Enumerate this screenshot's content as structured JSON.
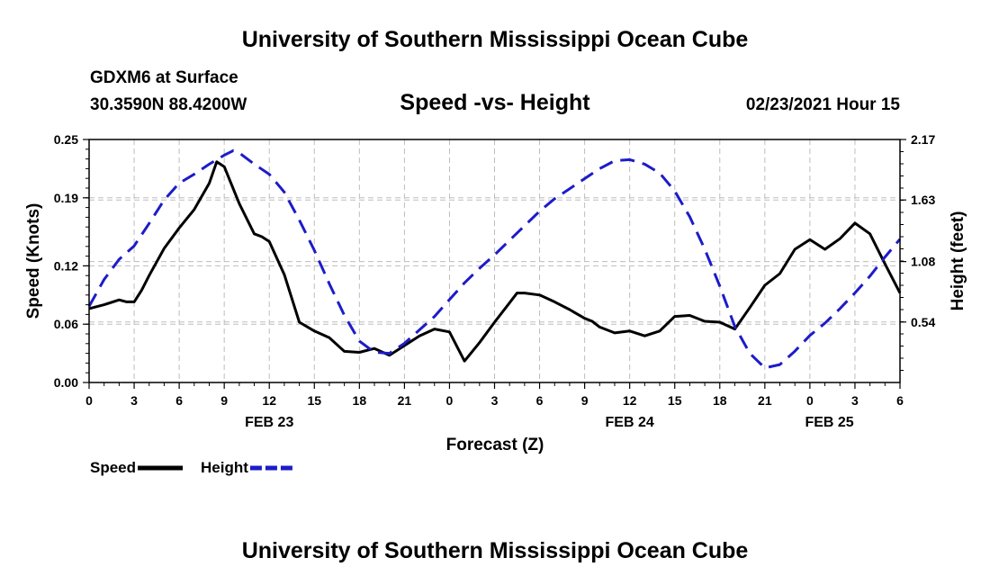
{
  "header": {
    "title": "University of Southern Mississippi Ocean Cube",
    "station": "GDXM6 at Surface",
    "coordinates": "30.3590N 88.4200W",
    "subtitle": "Speed -vs- Height",
    "datestamp": "02/23/2021 Hour 15"
  },
  "footer": {
    "title": "University of Southern Mississippi Ocean Cube"
  },
  "chart_data": {
    "type": "line",
    "title": "Speed -vs- Height",
    "xlabel": "Forecast (Z)",
    "ylabel_left": "Speed (Knots)",
    "ylabel_right": "Height (feet)",
    "grid": true,
    "x_unit": "forecast hours from Feb 23 00Z",
    "xlim": [
      0,
      54
    ],
    "x_ticks": [
      0,
      3,
      6,
      9,
      12,
      15,
      18,
      21,
      24,
      27,
      30,
      33,
      36,
      39,
      42,
      45,
      48,
      51,
      54
    ],
    "x_tick_labels": [
      "0",
      "3",
      "6",
      "9",
      "12",
      "15",
      "18",
      "21",
      "0",
      "3",
      "6",
      "9",
      "12",
      "15",
      "18",
      "21",
      "0",
      "3",
      "6"
    ],
    "date_labels": [
      {
        "text": "FEB 23",
        "x": 12
      },
      {
        "text": "FEB 24",
        "x": 36
      },
      {
        "text": "FEB 25",
        "x": 49.3
      }
    ],
    "ylim_left": [
      0,
      0.25
    ],
    "y_ticks_left": [
      0,
      0.06,
      0.12,
      0.19,
      0.25
    ],
    "y_tick_labels_left": [
      "0.00",
      "0.06",
      "0.12",
      "0.19",
      "0.25"
    ],
    "ylim_right": [
      0,
      2.17
    ],
    "y_ticks_right": [
      0.54,
      1.08,
      1.63,
      2.17
    ],
    "y_tick_labels_right": [
      "0.54",
      "1.08",
      "1.63",
      "2.17"
    ],
    "series": [
      {
        "name": "Speed",
        "axis": "left",
        "color": "#000000",
        "dash": "solid",
        "x": [
          0,
          1,
          2,
          2.5,
          3,
          3.5,
          4,
          5,
          6,
          7,
          8,
          8.5,
          9,
          10,
          11,
          11.5,
          12,
          13,
          14,
          15,
          16,
          17,
          18,
          19,
          20,
          21,
          22,
          23,
          24,
          25,
          26,
          27,
          28,
          28.5,
          29,
          30,
          31,
          32,
          33,
          33.5,
          34,
          35,
          36,
          37,
          38,
          39,
          40,
          41,
          42,
          43,
          44,
          45,
          46,
          47,
          48,
          49,
          50,
          51,
          52,
          53,
          54
        ],
        "values": [
          0.076,
          0.08,
          0.085,
          0.083,
          0.083,
          0.095,
          0.11,
          0.138,
          0.159,
          0.178,
          0.205,
          0.227,
          0.222,
          0.184,
          0.153,
          0.15,
          0.145,
          0.111,
          0.062,
          0.053,
          0.046,
          0.032,
          0.031,
          0.035,
          0.028,
          0.038,
          0.048,
          0.055,
          0.052,
          0.022,
          0.041,
          0.062,
          0.082,
          0.092,
          0.092,
          0.09,
          0.083,
          0.075,
          0.066,
          0.063,
          0.057,
          0.051,
          0.053,
          0.048,
          0.053,
          0.068,
          0.069,
          0.063,
          0.062,
          0.055,
          0.077,
          0.1,
          0.112,
          0.137,
          0.147,
          0.137,
          0.148,
          0.164,
          0.153,
          0.122,
          0.092
        ]
      },
      {
        "name": "Height",
        "axis": "right",
        "color": "#1c1cc8",
        "dash": "dashed",
        "x": [
          0,
          1,
          2,
          3,
          4,
          5,
          6,
          7,
          8,
          9,
          9.6,
          10,
          11,
          12,
          13,
          14,
          15,
          16,
          17,
          18,
          19,
          20,
          21,
          22,
          23,
          24,
          25,
          26,
          27,
          28,
          29,
          30,
          31,
          32,
          33,
          34,
          35,
          36,
          37,
          38,
          39,
          40,
          41,
          42,
          43,
          44,
          45,
          46,
          47,
          48,
          49,
          50,
          51,
          52,
          53,
          54
        ],
        "values": [
          0.68,
          0.92,
          1.1,
          1.22,
          1.42,
          1.63,
          1.78,
          1.86,
          1.95,
          2.03,
          2.07,
          2.05,
          1.95,
          1.86,
          1.7,
          1.45,
          1.18,
          0.88,
          0.6,
          0.37,
          0.27,
          0.26,
          0.35,
          0.47,
          0.59,
          0.74,
          0.89,
          1.02,
          1.14,
          1.27,
          1.4,
          1.53,
          1.64,
          1.73,
          1.82,
          1.91,
          1.98,
          1.99,
          1.95,
          1.87,
          1.71,
          1.48,
          1.19,
          0.86,
          0.5,
          0.26,
          0.13,
          0.16,
          0.28,
          0.42,
          0.53,
          0.66,
          0.8,
          0.95,
          1.12,
          1.28
        ]
      }
    ],
    "legend": [
      {
        "label": "Speed",
        "color": "#000000",
        "dash": "solid"
      },
      {
        "label": "Height",
        "color": "#1c1cc8",
        "dash": "dashed"
      }
    ],
    "legend_position": "bottom-left"
  }
}
